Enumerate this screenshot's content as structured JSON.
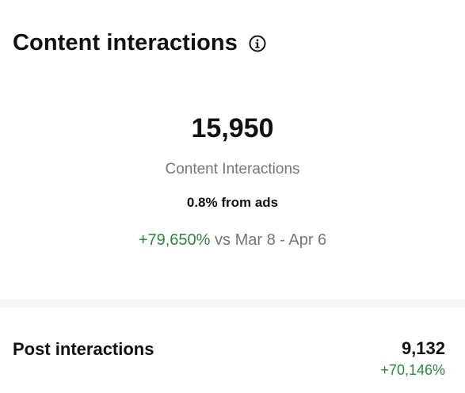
{
  "header": {
    "title": "Content interactions",
    "info_icon": "info-icon"
  },
  "summary": {
    "total": "15,950",
    "label": "Content Interactions",
    "ads_share": "0.8% from ads",
    "change": "+79,650%",
    "comparison_text": " vs Mar 8 - Apr 6"
  },
  "breakdown": {
    "post_interactions": {
      "label": "Post interactions",
      "value": "9,132",
      "change": "+70,146%"
    }
  },
  "colors": {
    "positive": "#2e8540",
    "muted_text": "#777777",
    "primary_text": "#111111",
    "divider": "#f5f5f5"
  }
}
